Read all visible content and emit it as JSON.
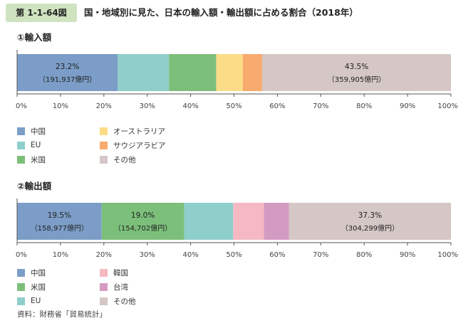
{
  "figure": {
    "label": "第 1-1-64図",
    "title": "国・地域別に見た、日本の輸入額・輸出額に占める割合（2018年）"
  },
  "source": "資料：財務省「貿易統計」",
  "colors": {
    "china": "#7b9dc7",
    "eu": "#8ecfcb",
    "usa": "#7cbf7a",
    "australia": "#fbdc86",
    "saudi": "#f8ab6e",
    "korea": "#f6b9c3",
    "taiwan": "#d49bc2",
    "other": "#d4c7c5"
  },
  "chart_data": [
    {
      "type": "bar",
      "stacked": true,
      "orientation": "horizontal",
      "title": "①輸入額",
      "xlim": [
        0,
        100
      ],
      "xticks": [
        "0%",
        "10%",
        "20%",
        "30%",
        "40%",
        "50%",
        "60%",
        "70%",
        "80%",
        "90%",
        "100%"
      ],
      "series": [
        {
          "name": "中国",
          "value": 23.2,
          "pct_label": "23.2%",
          "amount_label": "（191,937億円）",
          "color_key": "china"
        },
        {
          "name": "EU",
          "value": 11.8,
          "color_key": "eu"
        },
        {
          "name": "米国",
          "value": 10.9,
          "color_key": "usa"
        },
        {
          "name": "オーストラリア",
          "value": 6.1,
          "color_key": "australia"
        },
        {
          "name": "サウジアラビア",
          "value": 4.5,
          "color_key": "saudi"
        },
        {
          "name": "その他",
          "value": 43.5,
          "pct_label": "43.5%",
          "amount_label": "（359,905億円）",
          "color_key": "other"
        }
      ],
      "legend": [
        {
          "name": "中国",
          "color_key": "china",
          "col": 0,
          "row": 0
        },
        {
          "name": "EU",
          "color_key": "eu",
          "col": 0,
          "row": 1
        },
        {
          "name": "米国",
          "color_key": "usa",
          "col": 0,
          "row": 2
        },
        {
          "name": "オーストラリア",
          "color_key": "australia",
          "col": 1,
          "row": 0
        },
        {
          "name": "サウジアラビア",
          "color_key": "saudi",
          "col": 1,
          "row": 1
        },
        {
          "name": "その他",
          "color_key": "other",
          "col": 1,
          "row": 2
        }
      ]
    },
    {
      "type": "bar",
      "stacked": true,
      "orientation": "horizontal",
      "title": "②輸出額",
      "xlim": [
        0,
        100
      ],
      "xticks": [
        "0%",
        "10%",
        "20%",
        "30%",
        "40%",
        "50%",
        "60%",
        "70%",
        "80%",
        "90%",
        "100%"
      ],
      "series": [
        {
          "name": "中国",
          "value": 19.5,
          "pct_label": "19.5%",
          "amount_label": "（158,977億円）",
          "color_key": "china"
        },
        {
          "name": "米国",
          "value": 19.0,
          "pct_label": "19.0%",
          "amount_label": "（154,702億円）",
          "color_key": "usa"
        },
        {
          "name": "EU",
          "value": 11.3,
          "color_key": "eu"
        },
        {
          "name": "韓国",
          "value": 7.1,
          "color_key": "korea"
        },
        {
          "name": "台湾",
          "value": 5.8,
          "color_key": "taiwan"
        },
        {
          "name": "その他",
          "value": 37.3,
          "pct_label": "37.3%",
          "amount_label": "（304,299億円）",
          "color_key": "other"
        }
      ],
      "legend": [
        {
          "name": "中国",
          "color_key": "china",
          "col": 0,
          "row": 0
        },
        {
          "name": "米国",
          "color_key": "usa",
          "col": 0,
          "row": 1
        },
        {
          "name": "EU",
          "color_key": "eu",
          "col": 0,
          "row": 2
        },
        {
          "name": "韓国",
          "color_key": "korea",
          "col": 1,
          "row": 0
        },
        {
          "name": "台湾",
          "color_key": "taiwan",
          "col": 1,
          "row": 1
        },
        {
          "name": "その他",
          "color_key": "other",
          "col": 1,
          "row": 2
        }
      ]
    }
  ]
}
